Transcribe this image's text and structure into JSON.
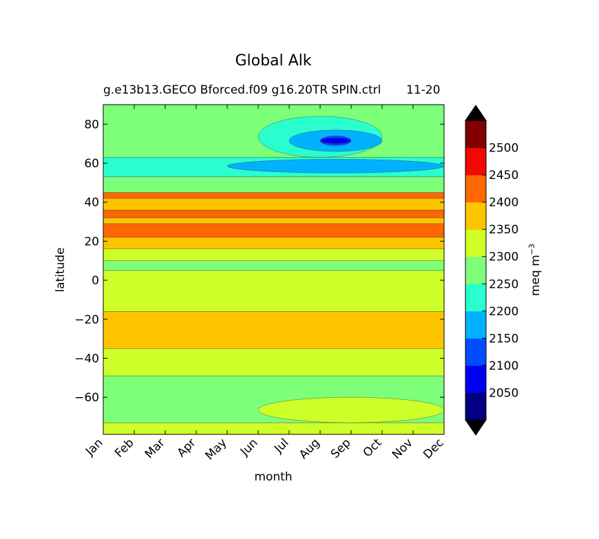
{
  "chart_data": {
    "type": "contourf",
    "title": "Global Alk",
    "subtitle_left": "g.e13b13.GECO Bforced.f09 g16.20TR SPIN.ctrl",
    "subtitle_right": "11-20",
    "xlabel": "month",
    "ylabel": "latitude",
    "x_ticks": [
      "Jan",
      "Feb",
      "Mar",
      "Apr",
      "May",
      "Jun",
      "Jul",
      "Aug",
      "Sep",
      "Oct",
      "Nov",
      "Dec"
    ],
    "y_ticks": [
      80,
      60,
      40,
      20,
      0,
      -20,
      -40,
      -60
    ],
    "ylim": [
      -79,
      90
    ],
    "colorbar": {
      "label": "meq m",
      "label_exp": "−3",
      "levels": [
        2000,
        2050,
        2100,
        2150,
        2200,
        2250,
        2300,
        2350,
        2400,
        2450,
        2500,
        2550
      ],
      "tick_labels": [
        2050,
        2100,
        2150,
        2200,
        2250,
        2300,
        2350,
        2400,
        2450,
        2500
      ],
      "colors": [
        "#000080",
        "#0000f1",
        "#004dff",
        "#00b1ff",
        "#29ffce",
        "#7dff7a",
        "#ceff29",
        "#ffc400",
        "#ff6800",
        "#f10800",
        "#800000"
      ],
      "extend": "both",
      "under_color": "#000000",
      "over_color": "#000000"
    },
    "bands": [
      {
        "lat_min": -79,
        "lat_max": -73,
        "value": 2325
      },
      {
        "lat_min": -73,
        "lat_max": -49,
        "value": 2285
      },
      {
        "lat_min": -49,
        "lat_max": -35,
        "value": 2320
      },
      {
        "lat_min": -35,
        "lat_max": -16,
        "value": 2375
      },
      {
        "lat_min": -16,
        "lat_max": 5,
        "value": 2325
      },
      {
        "lat_min": 5,
        "lat_max": 10,
        "value": 2280
      },
      {
        "lat_min": 10,
        "lat_max": 16,
        "value": 2320
      },
      {
        "lat_min": 16,
        "lat_max": 22,
        "value": 2375
      },
      {
        "lat_min": 22,
        "lat_max": 29,
        "value": 2425
      },
      {
        "lat_min": 29,
        "lat_max": 32,
        "value": 2375
      },
      {
        "lat_min": 32,
        "lat_max": 36,
        "value": 2425
      },
      {
        "lat_min": 36,
        "lat_max": 42,
        "value": 2375
      },
      {
        "lat_min": 42,
        "lat_max": 45,
        "value": 2425
      },
      {
        "lat_min": 45,
        "lat_max": 53,
        "value": 2280
      },
      {
        "lat_min": 53,
        "lat_max": 63,
        "value": 2225
      },
      {
        "lat_min": 63,
        "lat_max": 90,
        "value": 2280
      }
    ],
    "features": [
      {
        "kind": "southern_summer_lobe",
        "value": 2320,
        "lat_range": [
          -73,
          -60
        ],
        "months": [
          "Jun",
          "Dec"
        ]
      },
      {
        "kind": "arctic_summer_low",
        "value": 2225,
        "lat_range": [
          63,
          84
        ],
        "months": [
          "Jun",
          "Oct"
        ]
      },
      {
        "kind": "arctic_summer_low",
        "value": 2175,
        "lat_range": [
          66,
          77
        ],
        "months": [
          "Jul",
          "Oct"
        ]
      },
      {
        "kind": "arctic_summer_low",
        "value": 2125,
        "lat_range": [
          69,
          74
        ],
        "months": [
          "Aug",
          "Sep"
        ]
      },
      {
        "kind": "arctic_summer_low",
        "value": 2075,
        "lat_range": [
          70,
          73
        ],
        "months": [
          "Aug",
          "Sep"
        ]
      },
      {
        "kind": "subpolar_summer_low",
        "value": 2175,
        "lat_range": [
          55,
          62
        ],
        "months": [
          "May",
          "Dec"
        ]
      }
    ]
  }
}
